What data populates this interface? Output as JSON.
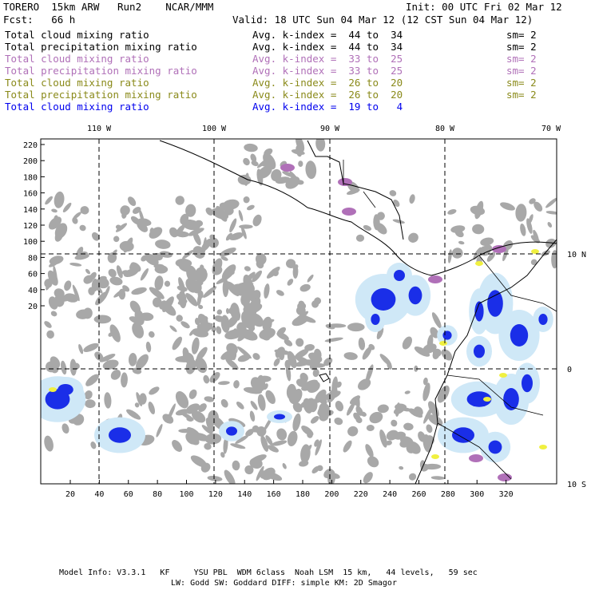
{
  "header": {
    "title_left": "TORERO  15km ARW   Run2    NCAR/MMM",
    "init": "Init: 00 UTC Fri 02 Mar 12",
    "fcst": "Fcst:   66 h",
    "valid": "Valid: 18 UTC Sun 04 Mar 12 (12 CST Sun 04 Mar 12)"
  },
  "legend": [
    {
      "field": "Total cloud mixing ratio",
      "kindex": "Avg. k-index =  44 to  34",
      "sm": "sm= 2",
      "color": "#000000"
    },
    {
      "field": "Total precipitation mixing ratio",
      "kindex": "Avg. k-index =  44 to  34",
      "sm": "sm= 2",
      "color": "#000000"
    },
    {
      "field": "Total cloud mixing ratio",
      "kindex": "Avg. k-index =  33 to  25",
      "sm": "sm= 2",
      "color": "#b070b8"
    },
    {
      "field": "Total precipitation mixing ratio",
      "kindex": "Avg. k-index =  33 to  25",
      "sm": "sm= 2",
      "color": "#b070b8"
    },
    {
      "field": "Total cloud mixing ratio",
      "kindex": "Avg. k-index =  26 to  20",
      "sm": "sm= 2",
      "color": "#8a8a1a"
    },
    {
      "field": "Total precipitation mixing ratio",
      "kindex": "Avg. k-index =  26 to  20",
      "sm": "sm= 2",
      "color": "#8a8a1a"
    },
    {
      "field": "Total cloud mixing ratio",
      "kindex": "Avg. k-index =  19 to   4",
      "sm": "",
      "color": "#0000ee"
    }
  ],
  "map": {
    "top_lon_labels": [
      "110 W",
      "100 W",
      "90 W",
      "80 W",
      "70 W"
    ],
    "right_lat_labels": [
      "10 N",
      "0",
      "10 S"
    ],
    "left_y_ticks": [
      "220",
      "200",
      "180",
      "160",
      "140",
      "120",
      "100",
      "80",
      "60",
      "40",
      "20"
    ],
    "bottom_x_ticks": [
      "20",
      "40",
      "60",
      "80",
      "100",
      "120",
      "140",
      "160",
      "180",
      "200",
      "220",
      "240",
      "260",
      "280",
      "300",
      "320"
    ],
    "colors": {
      "cloud_gray": "#a8a8a8",
      "light_blue": "#cfe8f7",
      "blue": "#1a2ee8",
      "purple": "#b070b8",
      "yellow": "#f0f040"
    }
  },
  "footer": {
    "line1": "Model Info: V3.3.1   KF     YSU PBL  WDM 6class  Noah LSM  15 km,   44 levels,   59 sec",
    "line2": "LW: Godd SW: Goddard DIFF: simple KM: 2D Smagor"
  }
}
